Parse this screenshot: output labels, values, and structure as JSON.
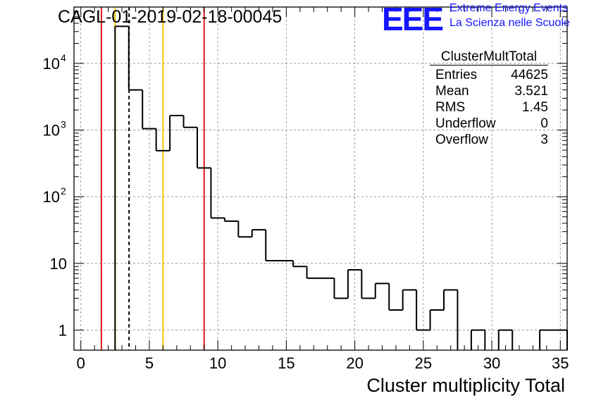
{
  "header": {
    "title": "CAGL-01-2019-02-18-00045",
    "logo": "EEE",
    "logo_line1": "Extreme Energy Events",
    "logo_line2": "La Scienza nelle Scuole"
  },
  "stats": {
    "title": "ClusterMultTotal",
    "rows": [
      {
        "label": "Entries",
        "value": "44625"
      },
      {
        "label": "Mean",
        "value": "3.521"
      },
      {
        "label": "RMS",
        "value": "1.45"
      },
      {
        "label": "Underflow",
        "value": "0"
      },
      {
        "label": "Overflow",
        "value": "3"
      }
    ]
  },
  "chart_data": {
    "type": "bar",
    "style": "step-histogram",
    "xlabel": "Cluster multiplicity Total",
    "ylabel": "",
    "xlim": [
      -0.5,
      35.5
    ],
    "ylim": [
      0.5,
      70000
    ],
    "yscale": "log",
    "grid": true,
    "bin_width": 1,
    "bin_centers": [
      0,
      1,
      2,
      3,
      4,
      5,
      6,
      7,
      8,
      9,
      10,
      11,
      12,
      13,
      14,
      15,
      16,
      17,
      18,
      19,
      20,
      21,
      22,
      23,
      24,
      25,
      26,
      27,
      28,
      29,
      30,
      31,
      32,
      33,
      34,
      35
    ],
    "values": [
      0,
      0,
      0,
      36000,
      4000,
      1050,
      490,
      1650,
      1100,
      270,
      48,
      43,
      25,
      32,
      11,
      11,
      9,
      6,
      6,
      3,
      8,
      3,
      5,
      2,
      4,
      1,
      2,
      4,
      0,
      1,
      0,
      1,
      0,
      0,
      1,
      1
    ],
    "x_ticks": [
      0,
      5,
      10,
      15,
      20,
      25,
      30,
      35
    ],
    "x_tick_labels": [
      "0",
      "5",
      "10",
      "15",
      "20",
      "25",
      "30",
      "35"
    ],
    "y_ticks": [
      1,
      10,
      100,
      1000,
      10000
    ],
    "y_tick_labels": [
      {
        "base": "1",
        "exp": ""
      },
      {
        "base": "10",
        "exp": ""
      },
      {
        "base": "10",
        "exp": "2"
      },
      {
        "base": "10",
        "exp": "3"
      },
      {
        "base": "10",
        "exp": "4"
      }
    ],
    "vertical_lines": [
      {
        "x": 1.5,
        "color": "#e8161b",
        "style": "solid"
      },
      {
        "x": 2.5,
        "color": "#f2c500",
        "style": "solid"
      },
      {
        "x": 3.521,
        "color": "#000000",
        "style": "dashed"
      },
      {
        "x": 6.0,
        "color": "#f2c500",
        "style": "solid"
      },
      {
        "x": 9.0,
        "color": "#e8161b",
        "style": "solid"
      }
    ],
    "line_color": "#000000"
  }
}
